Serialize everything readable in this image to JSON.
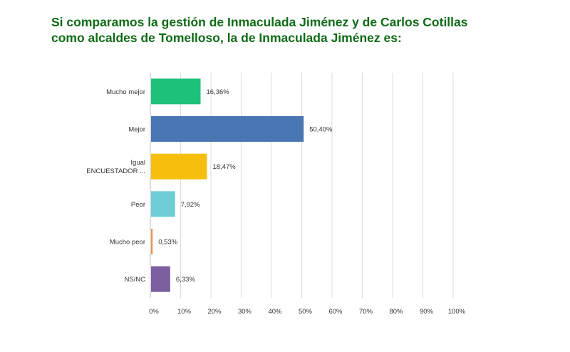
{
  "title": {
    "line1": "Si comparamos la gestión de Inmaculada Jiménez y de Carlos Cotillas",
    "line2": "como alcaldes de Tomelloso, la de Inmaculada Jiménez es:"
  },
  "chart_data": {
    "type": "bar",
    "orientation": "horizontal",
    "title": "Si comparamos la gestión de Inmaculada Jiménez y de Carlos Cotillas como alcaldes de Tomelloso, la de Inmaculada Jiménez es:",
    "categories": [
      [
        "Mucho mejor"
      ],
      [
        "Mejor"
      ],
      [
        "Igual",
        "ENCUESTADOR ..."
      ],
      [
        "Peor"
      ],
      [
        "Mucho peor"
      ],
      [
        "NS/NC"
      ]
    ],
    "values": [
      16.36,
      50.4,
      18.47,
      7.92,
      0.53,
      6.33
    ],
    "value_labels": [
      "16,36%",
      "50,40%",
      "18,47%",
      "7,92%",
      "0,53%",
      "6,33%"
    ],
    "colors": [
      "#1fc07a",
      "#4a77b4",
      "#f6bf0e",
      "#6dccd6",
      "#f09150",
      "#7d5ea1"
    ],
    "xlim": [
      0,
      100
    ],
    "xticks": [
      0,
      10,
      20,
      30,
      40,
      50,
      60,
      70,
      80,
      90,
      100
    ],
    "xtick_labels": [
      "0%",
      "10%",
      "20%",
      "30%",
      "40%",
      "50%",
      "60%",
      "70%",
      "80%",
      "90%",
      "100%"
    ],
    "xlabel": "",
    "ylabel": "",
    "grid": true,
    "legend": "none"
  }
}
